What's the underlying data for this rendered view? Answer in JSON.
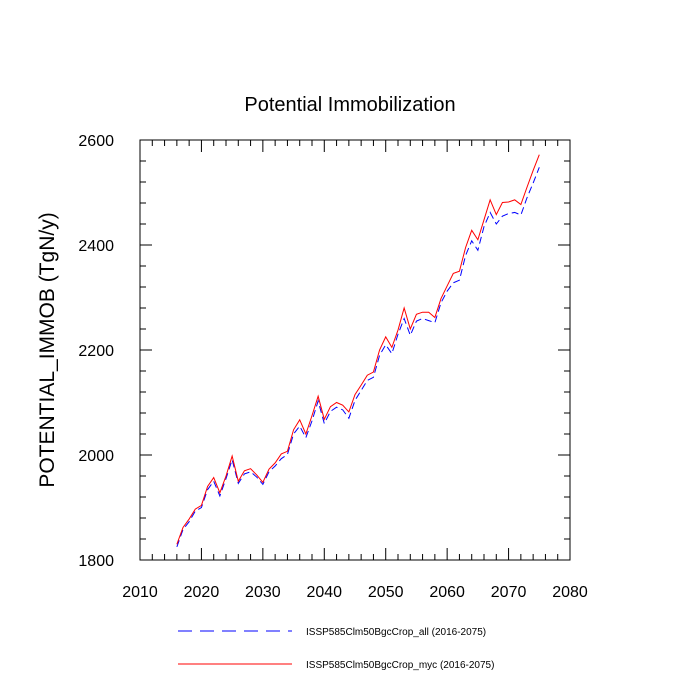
{
  "chart_data": {
    "type": "line",
    "title": "Potential Immobilization",
    "xlabel": "",
    "ylabel": "POTENTIAL_IMMOB  (TgN/y)",
    "xlim": [
      2010,
      2080
    ],
    "ylim": [
      1800,
      2600
    ],
    "xticks": [
      2010,
      2020,
      2030,
      2040,
      2050,
      2060,
      2070,
      2080
    ],
    "yticks": [
      1800,
      2000,
      2200,
      2400,
      2600
    ],
    "grid": false,
    "legend_position": "bottom",
    "series": [
      {
        "name": "ISSP585Clm50BgcCrop_all (2016-2075)",
        "color": "#0000ff",
        "style": "dashed",
        "x": [
          2016,
          2017,
          2018,
          2019,
          2020,
          2021,
          2022,
          2023,
          2024,
          2025,
          2026,
          2027,
          2028,
          2029,
          2030,
          2031,
          2032,
          2033,
          2034,
          2035,
          2036,
          2037,
          2038,
          2039,
          2040,
          2041,
          2042,
          2043,
          2044,
          2045,
          2046,
          2047,
          2048,
          2049,
          2050,
          2051,
          2052,
          2053,
          2054,
          2055,
          2056,
          2057,
          2058,
          2059,
          2060,
          2061,
          2062,
          2063,
          2064,
          2065,
          2066,
          2067,
          2068,
          2069,
          2070,
          2071,
          2072,
          2073,
          2074,
          2075
        ],
        "y": [
          1825,
          1858,
          1873,
          1893,
          1900,
          1934,
          1950,
          1922,
          1955,
          1991,
          1946,
          1964,
          1968,
          1958,
          1944,
          1968,
          1979,
          1993,
          2001,
          2040,
          2055,
          2033,
          2065,
          2103,
          2060,
          2083,
          2091,
          2086,
          2070,
          2104,
          2123,
          2142,
          2148,
          2190,
          2210,
          2193,
          2230,
          2260,
          2228,
          2255,
          2260,
          2256,
          2252,
          2290,
          2312,
          2328,
          2333,
          2380,
          2408,
          2390,
          2435,
          2462,
          2440,
          2455,
          2460,
          2462,
          2457,
          2490,
          2518,
          2548
        ]
      },
      {
        "name": "ISSP585Clm50BgcCrop_myc (2016-2075)",
        "color": "#ff0000",
        "style": "solid",
        "x": [
          2016,
          2017,
          2018,
          2019,
          2020,
          2021,
          2022,
          2023,
          2024,
          2025,
          2026,
          2027,
          2028,
          2029,
          2030,
          2031,
          2032,
          2033,
          2034,
          2035,
          2036,
          2037,
          2038,
          2039,
          2040,
          2041,
          2042,
          2043,
          2044,
          2045,
          2046,
          2047,
          2048,
          2049,
          2050,
          2051,
          2052,
          2053,
          2054,
          2055,
          2056,
          2057,
          2058,
          2059,
          2060,
          2061,
          2062,
          2063,
          2064,
          2065,
          2066,
          2067,
          2068,
          2069,
          2070,
          2071,
          2072,
          2073,
          2074,
          2075
        ],
        "y": [
          1830,
          1862,
          1878,
          1897,
          1904,
          1940,
          1957,
          1928,
          1960,
          1998,
          1950,
          1970,
          1974,
          1962,
          1948,
          1973,
          1985,
          2002,
          2007,
          2048,
          2067,
          2040,
          2075,
          2112,
          2068,
          2092,
          2100,
          2095,
          2082,
          2115,
          2133,
          2152,
          2158,
          2200,
          2225,
          2205,
          2238,
          2280,
          2240,
          2268,
          2272,
          2272,
          2262,
          2298,
          2322,
          2346,
          2350,
          2395,
          2428,
          2410,
          2448,
          2486,
          2458,
          2481,
          2482,
          2486,
          2477,
          2510,
          2542,
          2572
        ]
      }
    ]
  }
}
